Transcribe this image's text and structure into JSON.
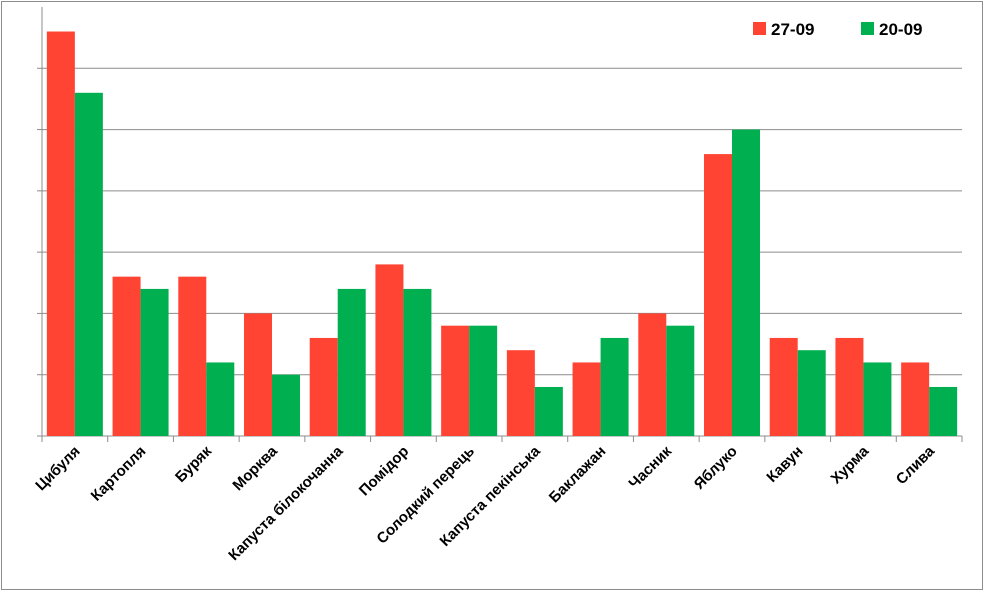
{
  "chart_data": {
    "type": "bar",
    "title": "",
    "xlabel": "",
    "ylabel": "",
    "categories": [
      "Цибуля",
      "Картопля",
      "Буряк",
      "Морква",
      "Капуста білокочанна",
      "Помідор",
      "Солодкий перець",
      "Капуста пекінська",
      "Баклажан",
      "Часник",
      "Яблуко",
      "Кавун",
      "Хурма",
      "Слива"
    ],
    "series": [
      {
        "name": "27-09",
        "color": "#ff4433",
        "values": [
          33,
          13,
          13,
          10,
          8,
          14,
          9,
          7,
          6,
          10,
          23,
          8,
          8,
          6
        ]
      },
      {
        "name": "20-09",
        "color": "#00b050",
        "values": [
          28,
          12,
          6,
          5,
          12,
          12,
          9,
          4,
          8,
          9,
          25,
          7,
          6,
          4
        ]
      }
    ],
    "ylim": [
      0,
      35
    ],
    "y_gridlines": [
      5,
      10,
      15,
      20,
      25,
      30
    ],
    "y_tick_labels_shown": false,
    "grid": true,
    "legend_position": "top-right"
  }
}
